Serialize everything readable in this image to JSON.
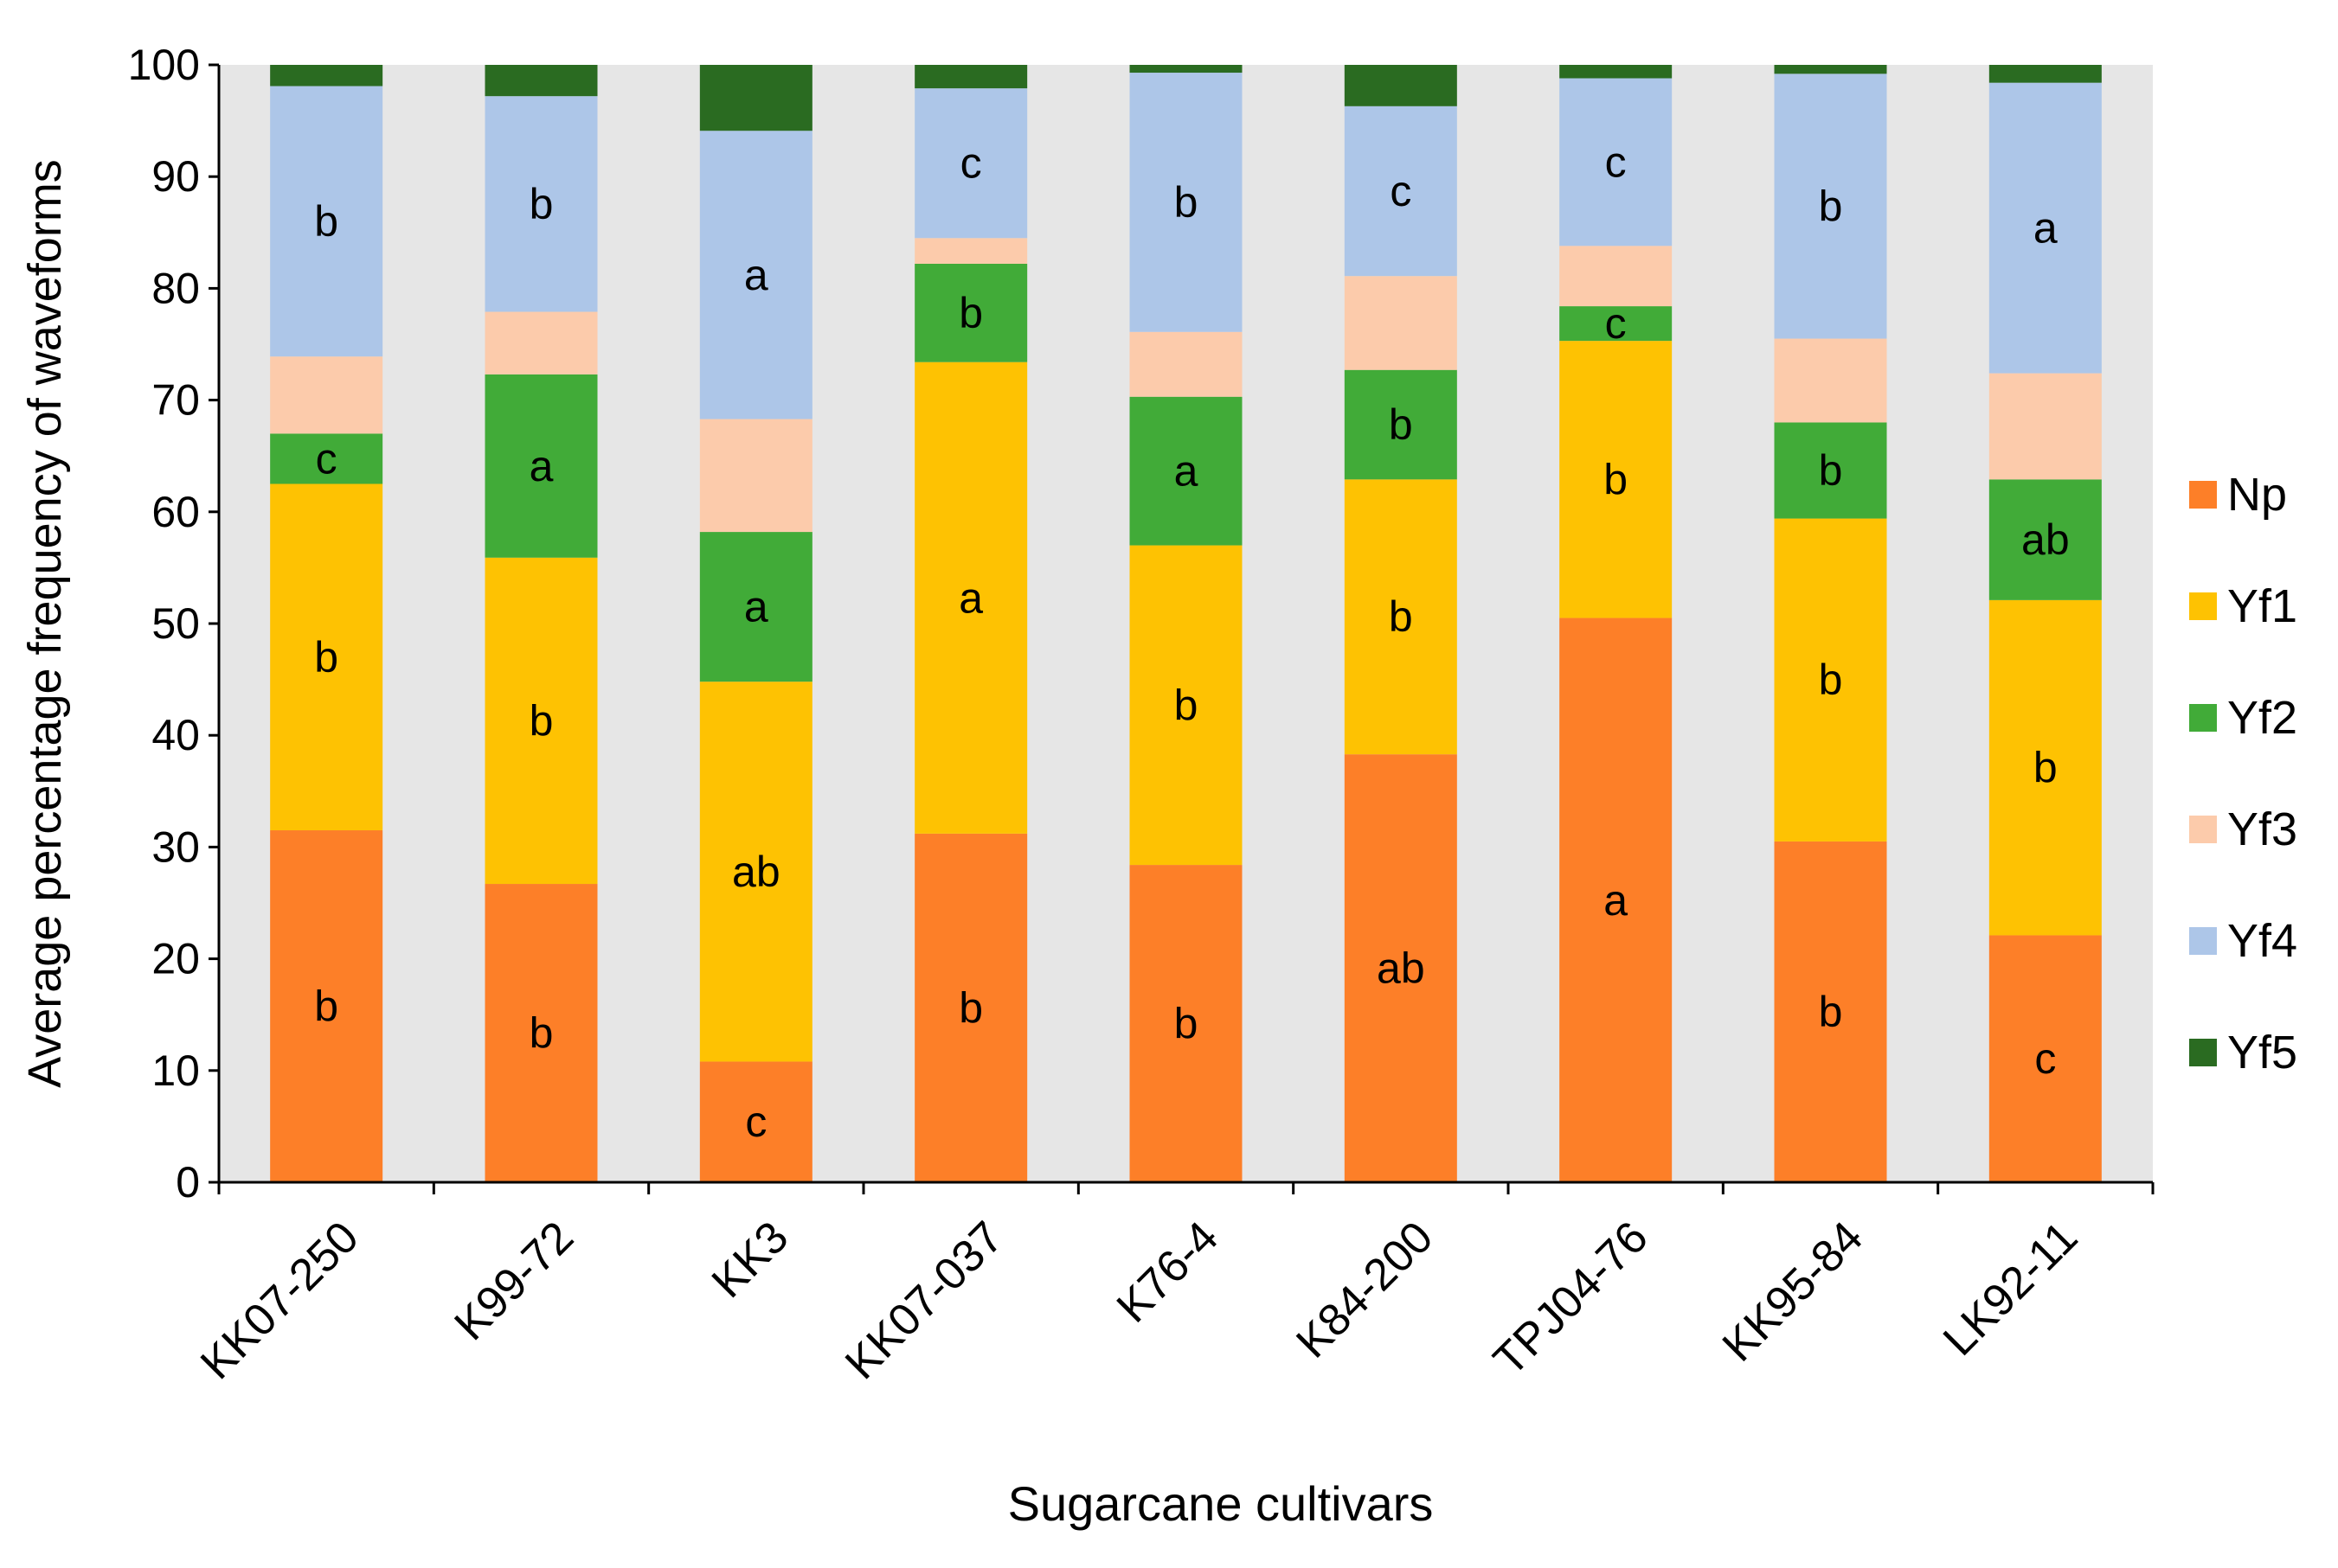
{
  "chart_data": {
    "type": "bar",
    "stacked": true,
    "title": "",
    "xlabel": "Sugarcane cultivars",
    "ylabel": "Average percentage frequency of waveforms",
    "ylim": [
      0,
      100
    ],
    "yticks": [
      "0",
      "10",
      "20",
      "30",
      "40",
      "50",
      "60",
      "70",
      "80",
      "90",
      "100"
    ],
    "grid": false,
    "plot_background": "#e6e6e6",
    "legend_position": "right",
    "categories": [
      "KK07-250",
      "K99-72",
      "KK3",
      "KK07-037",
      "K76-4",
      "K84-200",
      "TPJ04-76",
      "KK95-84",
      "LK92-11"
    ],
    "series": [
      {
        "name": "Np",
        "color": "#fd7f28",
        "values": [
          31.5,
          26.7,
          10.8,
          31.2,
          28.4,
          38.3,
          50.5,
          30.5,
          22.1
        ],
        "labels": [
          "b",
          "b",
          "c",
          "b",
          "b",
          "ab",
          "a",
          "b",
          "c"
        ]
      },
      {
        "name": "Yf1",
        "color": "#fec202",
        "values": [
          31.0,
          29.2,
          34.0,
          42.2,
          28.6,
          24.6,
          24.8,
          28.9,
          30.0
        ],
        "labels": [
          "b",
          "b",
          "ab",
          "a",
          "b",
          "b",
          "b",
          "b",
          "b"
        ]
      },
      {
        "name": "Yf2",
        "color": "#41ab38",
        "values": [
          4.5,
          16.4,
          13.4,
          8.8,
          13.3,
          9.8,
          3.1,
          8.6,
          10.8
        ],
        "labels": [
          "c",
          "a",
          "a",
          "b",
          "a",
          "b",
          "c",
          "b",
          "ab"
        ]
      },
      {
        "name": "Yf3",
        "color": "#fccbab",
        "values": [
          6.9,
          5.6,
          10.1,
          2.3,
          5.8,
          8.4,
          5.4,
          7.5,
          9.5
        ],
        "labels": [
          "",
          "",
          "",
          "",
          "",
          "",
          "",
          "",
          ""
        ]
      },
      {
        "name": "Yf4",
        "color": "#adc6e8",
        "values": [
          24.2,
          19.3,
          25.8,
          13.4,
          23.2,
          15.2,
          15.0,
          23.7,
          26.0
        ],
        "labels": [
          "b",
          "b",
          "a",
          "c",
          "b",
          "c",
          "c",
          "b",
          "a"
        ]
      },
      {
        "name": "Yf5",
        "color": "#2a6b21",
        "values": [
          1.9,
          2.8,
          5.9,
          2.1,
          0.7,
          3.7,
          1.2,
          0.8,
          1.6
        ],
        "labels": [
          "",
          "",
          "",
          "",
          "",
          "",
          "",
          "",
          ""
        ]
      }
    ]
  }
}
